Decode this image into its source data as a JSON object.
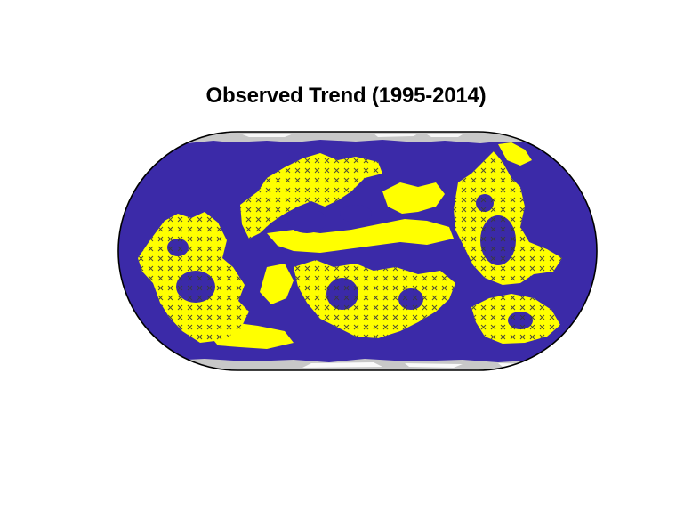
{
  "title": "Observed Trend (1995-2014)",
  "map": {
    "projection": "equal-earth",
    "colors": {
      "ocean_low": "#3b2aa8",
      "significant_high": "#ffff00",
      "hatch_marker": "#3a3a3a",
      "sea_ice_mask": "#c8c8c8",
      "frame": "#000000"
    },
    "hatch_marker_symbol": "x",
    "stippled_regions": "yellow patches marked with x"
  }
}
